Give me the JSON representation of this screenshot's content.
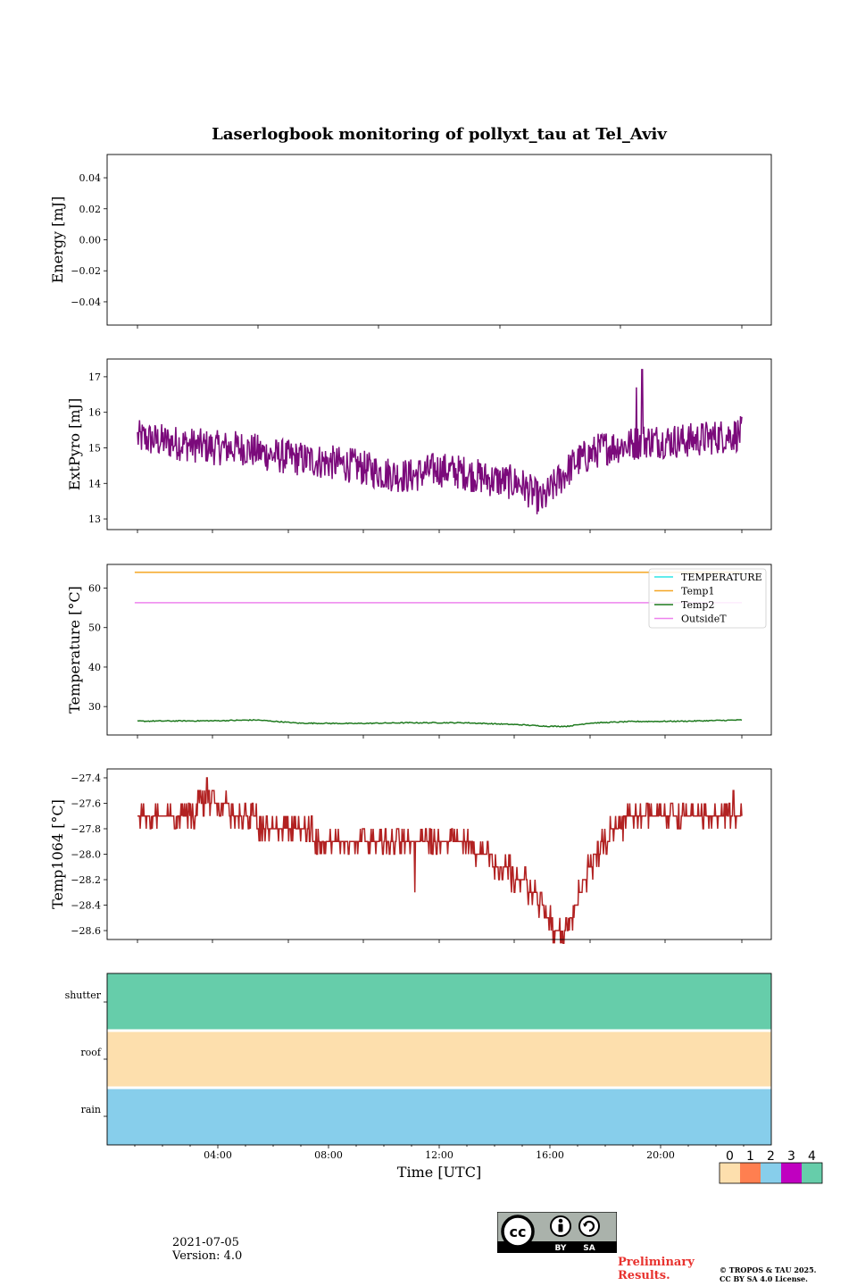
{
  "title": "Laserlogbook monitoring of pollyxt_tau at Tel_Aviv",
  "footer": {
    "date": "2021-07-05",
    "version": "Version: 4.0",
    "preliminary_line1": "Preliminary",
    "preliminary_line2": "Results.",
    "copyright_line1": "© TROPOS & TAU 2025.",
    "copyright_line2": "CC BY SA 4.0 License.",
    "cc_by": "BY",
    "cc_sa": "SA"
  },
  "chart_data": [
    {
      "type": "line",
      "ylabel": "Energy [mJ]",
      "ylim": [
        -0.055,
        0.055
      ],
      "yticks": [
        -0.04,
        -0.02,
        0.0,
        0.02,
        0.04
      ],
      "yticklabels": [
        "−0.04",
        "−0.02",
        "0.00",
        "0.02",
        "0.04"
      ],
      "series": []
    },
    {
      "type": "line",
      "ylabel": "ExtPyro [mJ]",
      "ylim": [
        12.7,
        17.5
      ],
      "yticks": [
        13,
        14,
        15,
        16,
        17
      ],
      "yticklabels": [
        "13",
        "14",
        "15",
        "16",
        "17"
      ],
      "color": "#7b0a7b",
      "x_hours": [
        0.1,
        1.0,
        2.0,
        3.0,
        4.0,
        5.0,
        6.0,
        7.0,
        8.0,
        9.0,
        10.0,
        11.0,
        12.0,
        13.0,
        14.0,
        14.8,
        15.3,
        16.0,
        17.0,
        18.0,
        18.4,
        18.5,
        19.0,
        20.0,
        21.0,
        22.0,
        22.0
      ],
      "y_mean": [
        15.3,
        15.2,
        15.1,
        15.0,
        15.0,
        14.8,
        14.7,
        14.6,
        14.5,
        14.3,
        14.2,
        14.4,
        14.3,
        14.1,
        14.0,
        13.5,
        14.0,
        14.6,
        15.0,
        15.1,
        15.2,
        15.2,
        15.2,
        15.2,
        15.3,
        15.4,
        15.3
      ],
      "spikes": [
        {
          "x": 18.2,
          "y": 16.7
        },
        {
          "x": 18.4,
          "y": 17.2
        }
      ],
      "noise": 0.5
    },
    {
      "type": "line",
      "ylabel": "Temperature [°C]",
      "ylim": [
        22.8,
        66.0
      ],
      "yticks": [
        30,
        40,
        50,
        60
      ],
      "yticklabels": [
        "30",
        "40",
        "50",
        "60"
      ],
      "legend_position": "top-right",
      "series": [
        {
          "name": "TEMPERATURE",
          "color": "#2fe5e5",
          "values_x": [],
          "values_y": []
        },
        {
          "name": "Temp1",
          "color": "#f5a623",
          "values_x": [
            0.1,
            22.0
          ],
          "values_y": [
            64.0,
            64.0
          ]
        },
        {
          "name": "Temp2",
          "color": "#1f7a1f",
          "values_x": [
            0.1,
            3.0,
            4.5,
            6.0,
            8.0,
            10.0,
            12.0,
            14.0,
            15.0,
            15.7,
            16.5,
            18.0,
            20.0,
            22.0
          ],
          "values_y": [
            26.3,
            26.4,
            26.6,
            25.8,
            25.7,
            25.9,
            25.9,
            25.4,
            25.0,
            25.0,
            25.8,
            26.2,
            26.3,
            26.6
          ]
        },
        {
          "name": "OutsideT",
          "color": "#ee82ee",
          "values_x": [
            0.1,
            22.0
          ],
          "values_y": [
            56.3,
            56.3
          ]
        }
      ]
    },
    {
      "type": "line",
      "ylabel": "Temp1064 [°C]",
      "ylim": [
        -28.67,
        -27.33
      ],
      "yticks": [
        -28.6,
        -28.4,
        -28.2,
        -28.0,
        -27.8,
        -27.6,
        -27.4
      ],
      "yticklabels": [
        "−28.6",
        "−28.4",
        "−28.2",
        "−28.0",
        "−27.8",
        "−27.6",
        "−27.4"
      ],
      "color": "#b22222",
      "x_hours": [
        0.1,
        1.0,
        2.0,
        2.6,
        3.0,
        4.0,
        5.0,
        6.0,
        7.0,
        8.0,
        9.0,
        10.0,
        11.0,
        12.0,
        12.7,
        13.3,
        14.0,
        14.5,
        15.0,
        15.3,
        15.7,
        16.0,
        16.5,
        17.0,
        17.5,
        18.0,
        19.0,
        20.0,
        21.0,
        22.0
      ],
      "y_values": [
        -27.7,
        -27.7,
        -27.7,
        -27.6,
        -27.6,
        -27.7,
        -27.8,
        -27.8,
        -27.9,
        -27.9,
        -27.9,
        -27.9,
        -27.9,
        -27.9,
        -28.0,
        -28.1,
        -28.2,
        -28.3,
        -28.5,
        -28.6,
        -28.6,
        -28.4,
        -28.1,
        -27.9,
        -27.8,
        -27.7,
        -27.7,
        -27.7,
        -27.7,
        -27.7
      ],
      "spikes": [
        {
          "x": 2.7,
          "y": -27.4
        },
        {
          "x": 2.9,
          "y": -27.5
        },
        {
          "x": 10.2,
          "y": -28.3
        },
        {
          "x": 21.7,
          "y": -27.5
        }
      ]
    },
    {
      "type": "heatmap",
      "rows": [
        "shutter",
        "roof",
        "rain"
      ],
      "row_values": [
        4,
        0,
        2
      ],
      "xlabel": "Time [UTC]",
      "xticks_hours": [
        4,
        8,
        12,
        16,
        20
      ],
      "xticklabels": [
        "04:00",
        "08:00",
        "12:00",
        "16:00",
        "20:00"
      ],
      "xlim_hours": [
        0,
        24
      ],
      "colorbar": {
        "labels": [
          "0",
          "1",
          "2",
          "3",
          "4"
        ],
        "colors": [
          "#fddfad",
          "#ff7f50",
          "#87ceeb",
          "#c000c0",
          "#66cdaa"
        ]
      }
    }
  ]
}
